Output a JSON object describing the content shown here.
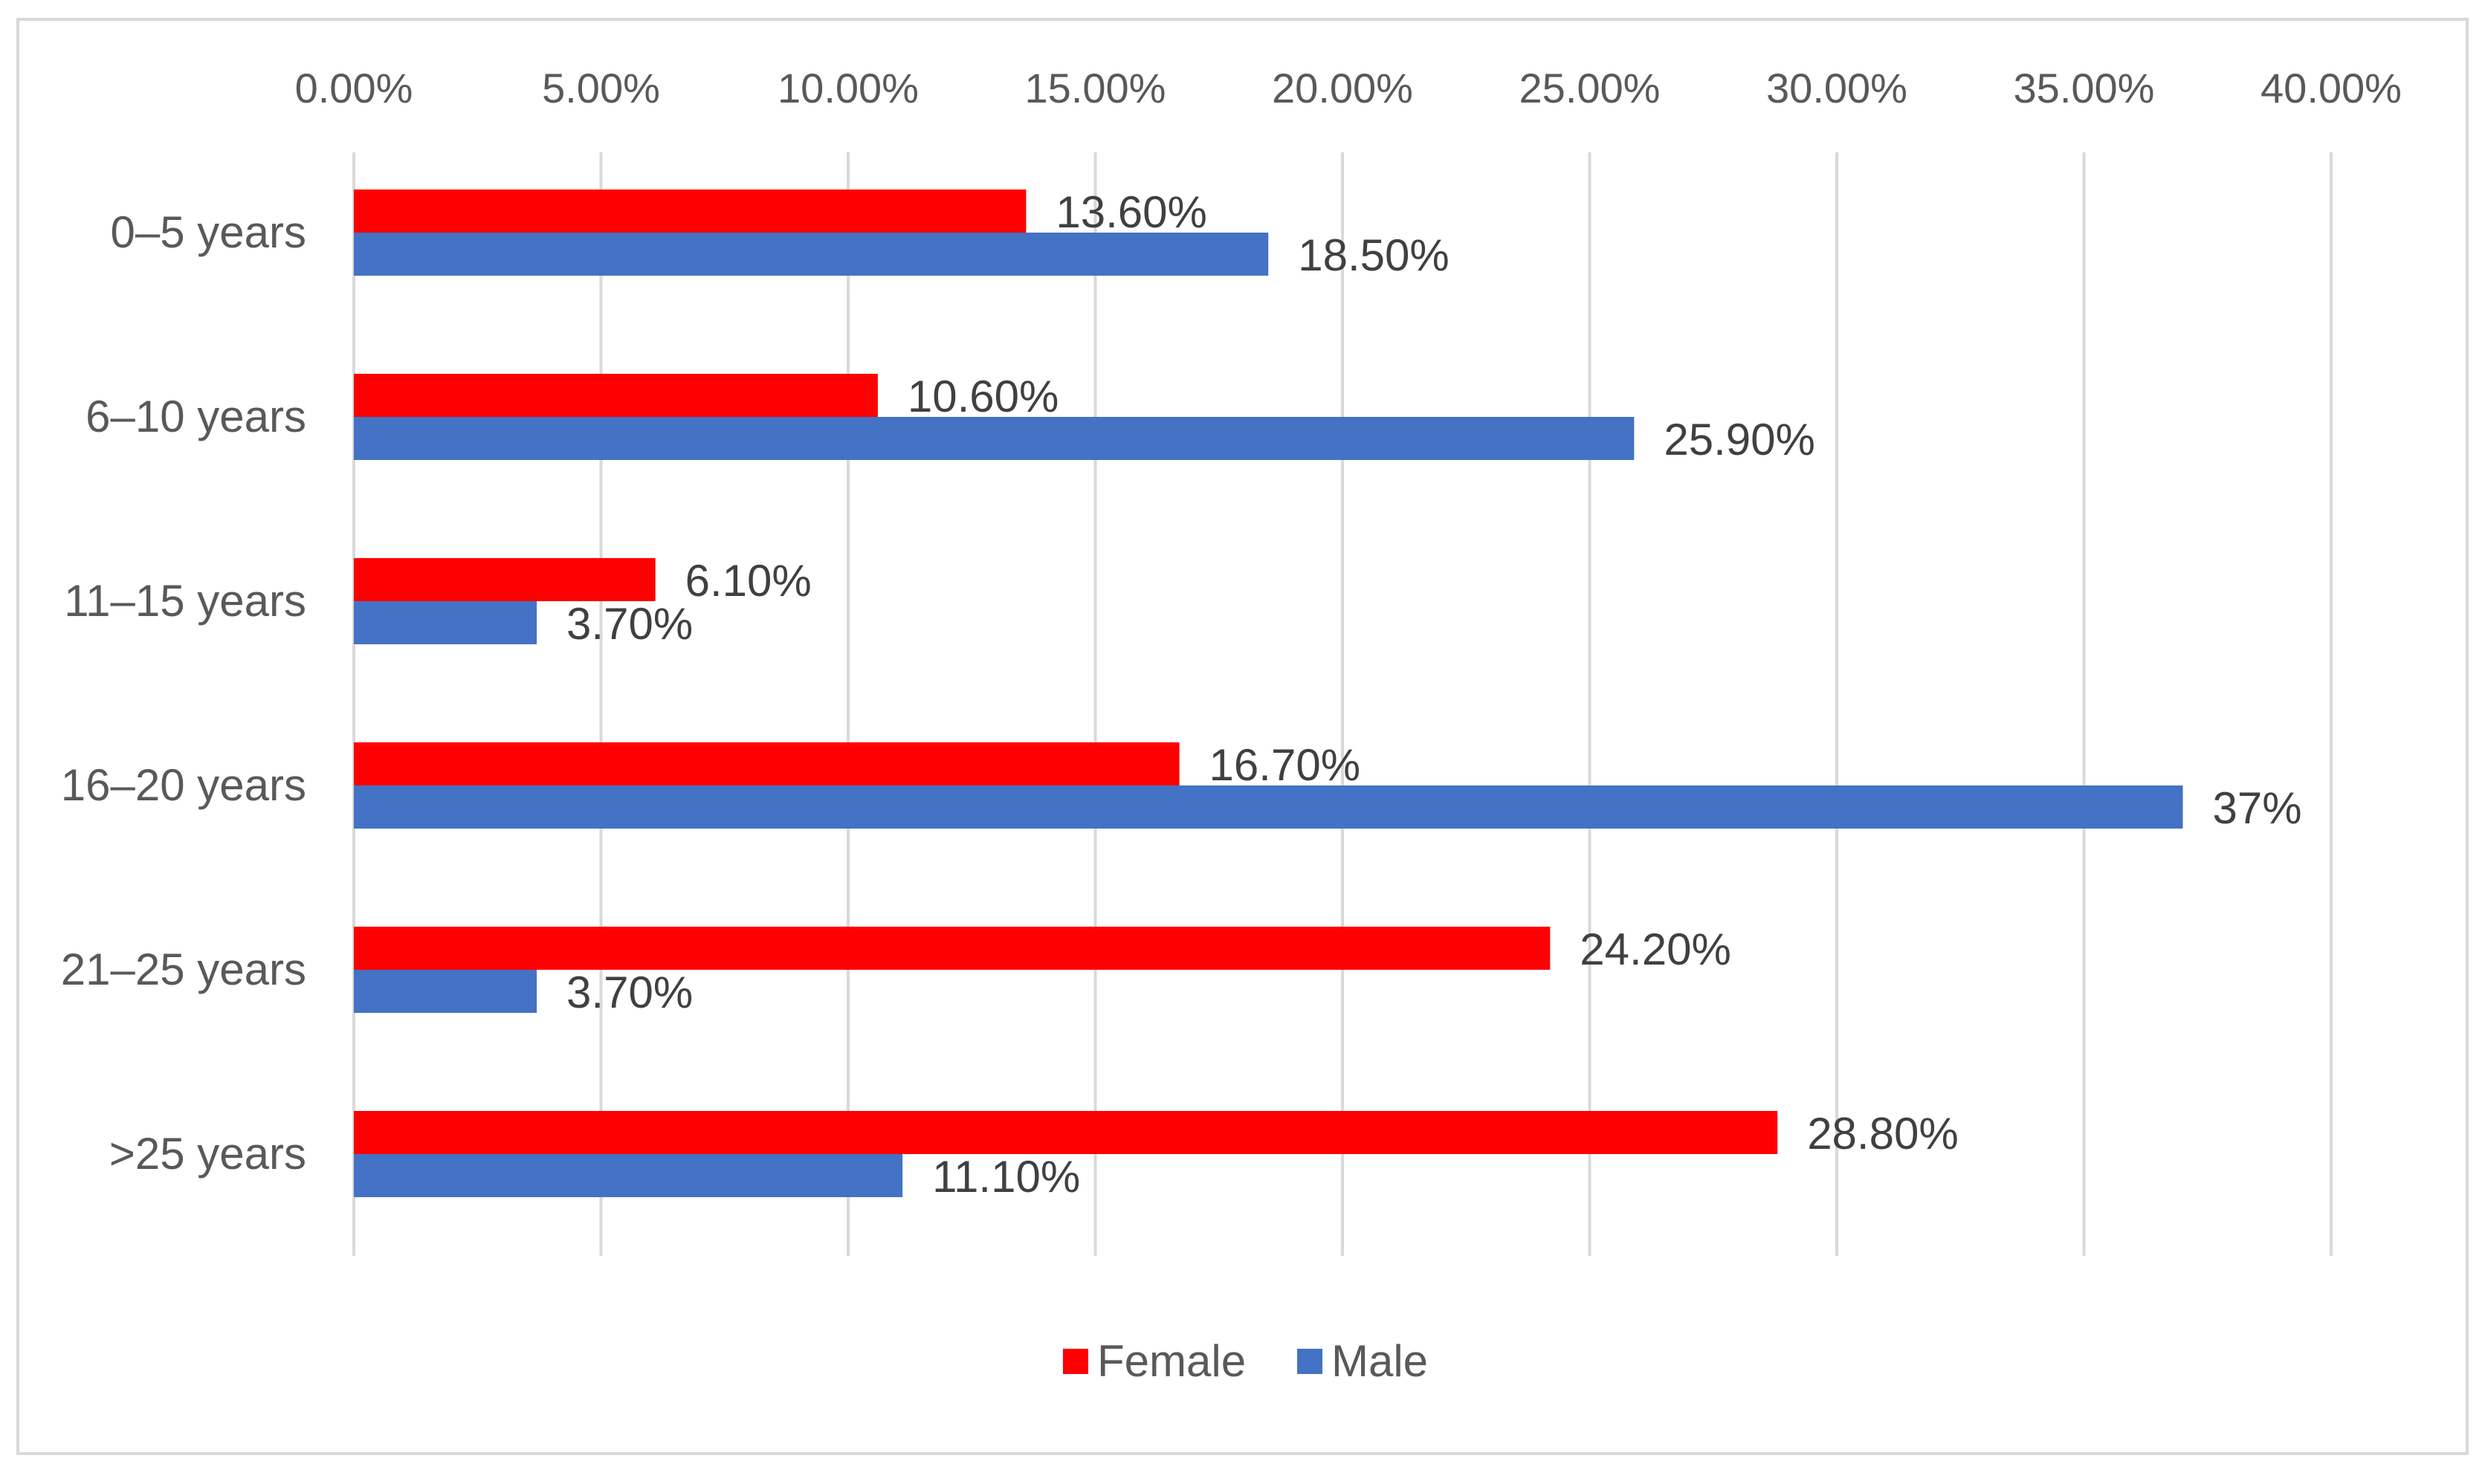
{
  "chart_data": {
    "type": "bar",
    "orientation": "horizontal",
    "title": "",
    "xlabel": "",
    "ylabel": "",
    "xlim": [
      0,
      40
    ],
    "grid": true,
    "legend_position": "bottom",
    "categories": [
      "0–5 years",
      "6–10 years",
      "11–15 years",
      "16–20 years",
      "21–25 years",
      ">25 years"
    ],
    "tick_labels": [
      "0.00%",
      "5.00%",
      "10.00%",
      "15.00%",
      "20.00%",
      "25.00%",
      "30.00%",
      "35.00%",
      "40.00%"
    ],
    "ticks": [
      0,
      5,
      10,
      15,
      20,
      25,
      30,
      35,
      40
    ],
    "series": [
      {
        "name": "Female",
        "color": "#ff0000",
        "values": [
          13.6,
          10.6,
          6.1,
          16.7,
          24.2,
          28.8
        ],
        "labels": [
          "13.60%",
          "10.60%",
          "6.10%",
          "16.70%",
          "24.20%",
          "28.80%"
        ]
      },
      {
        "name": "Male",
        "color": "#4472c4",
        "values": [
          18.5,
          25.9,
          3.7,
          37,
          3.7,
          11.1
        ],
        "labels": [
          "18.50%",
          "25.90%",
          "3.70%",
          "37%",
          "3.70%",
          "11.10%"
        ]
      }
    ]
  }
}
